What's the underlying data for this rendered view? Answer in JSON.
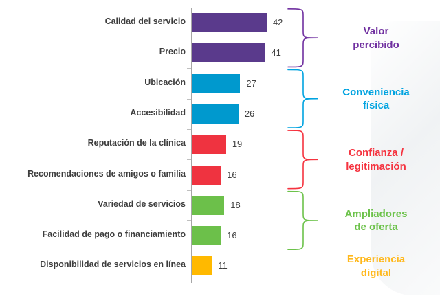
{
  "chart_data": {
    "type": "bar",
    "orientation": "horizontal",
    "title": "",
    "xlabel": "",
    "ylabel": "",
    "xlim": [
      0,
      46
    ],
    "grid": false,
    "legend": "none",
    "categories": [
      "Calidad del servicio",
      "Precio",
      "Ubicación",
      "Accesibilidad",
      "Reputación de la clínica",
      "Recomendaciones de amigos o familia",
      "Variedad de servicios",
      "Facilidad de pago o financiamiento",
      "Disponibilidad de servicios en línea"
    ],
    "values": [
      42,
      41,
      27,
      26,
      19,
      16,
      18,
      16,
      11
    ],
    "bar_colors": [
      "#5a3a8c",
      "#5a3a8c",
      "#0099ce",
      "#0099ce",
      "#ef3340",
      "#ef3340",
      "#6cc04a",
      "#6cc04a",
      "#ffb900"
    ],
    "value_label_color": "#404040",
    "category_label_color": "#3d3d3d",
    "axis_color": "#a6a6a6",
    "groups": [
      {
        "lines": [
          "Valor",
          "percibido"
        ],
        "color": "#7030a0",
        "rows": [
          0,
          1
        ],
        "brace": true
      },
      {
        "lines": [
          "Conveniencia",
          "física"
        ],
        "color": "#00a3e0",
        "rows": [
          2,
          3
        ],
        "brace": true
      },
      {
        "lines": [
          "Confianza /",
          "legitimación"
        ],
        "color": "#f5333f",
        "rows": [
          4,
          5
        ],
        "brace": true
      },
      {
        "lines": [
          "Ampliadores",
          "de oferta"
        ],
        "color": "#6cc24a",
        "rows": [
          6,
          7
        ],
        "brace": true
      },
      {
        "lines": [
          "Experiencia",
          "digital"
        ],
        "color": "#ffb81c",
        "rows": [
          8,
          8
        ],
        "brace": false
      }
    ]
  }
}
